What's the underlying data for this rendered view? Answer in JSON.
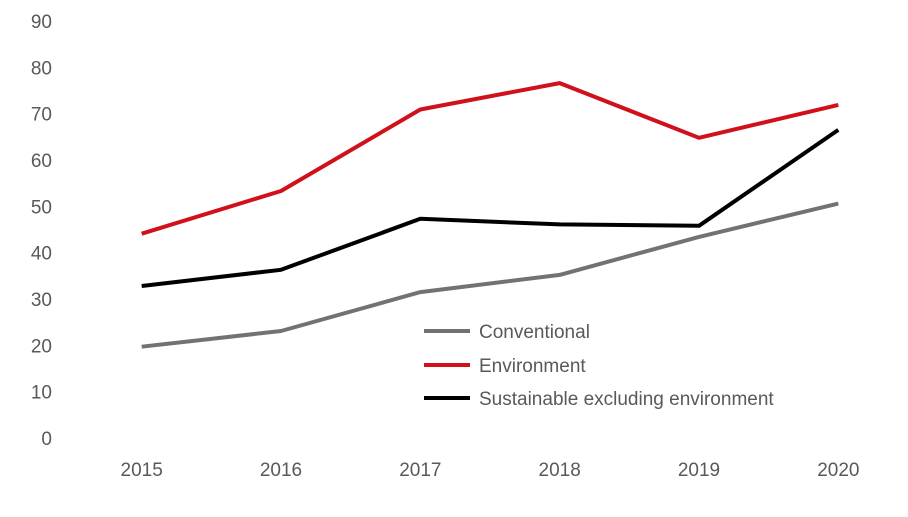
{
  "chart_data": {
    "type": "line",
    "title": "",
    "xlabel": "",
    "ylabel": "",
    "categories": [
      "2015",
      "2016",
      "2017",
      "2018",
      "2019",
      "2020"
    ],
    "ylim": [
      0,
      90
    ],
    "yticks": [
      "0",
      "10",
      "20",
      "30",
      "40",
      "50",
      "60",
      "70",
      "80",
      "90"
    ],
    "grid": false,
    "legend_position": "bottom-right",
    "series": [
      {
        "name": "Conventional",
        "color": "#767171",
        "values": [
          19.7,
          23.1,
          31.5,
          35.2,
          43.4,
          50.6
        ]
      },
      {
        "name": "Environment",
        "color": "#d0111b",
        "values": [
          44.1,
          53.3,
          70.9,
          76.6,
          64.8,
          71.9
        ]
      },
      {
        "name": "Sustainable excluding environment",
        "color": "#000000",
        "values": [
          32.8,
          36.3,
          47.3,
          46.1,
          45.8,
          66.5
        ]
      }
    ]
  }
}
